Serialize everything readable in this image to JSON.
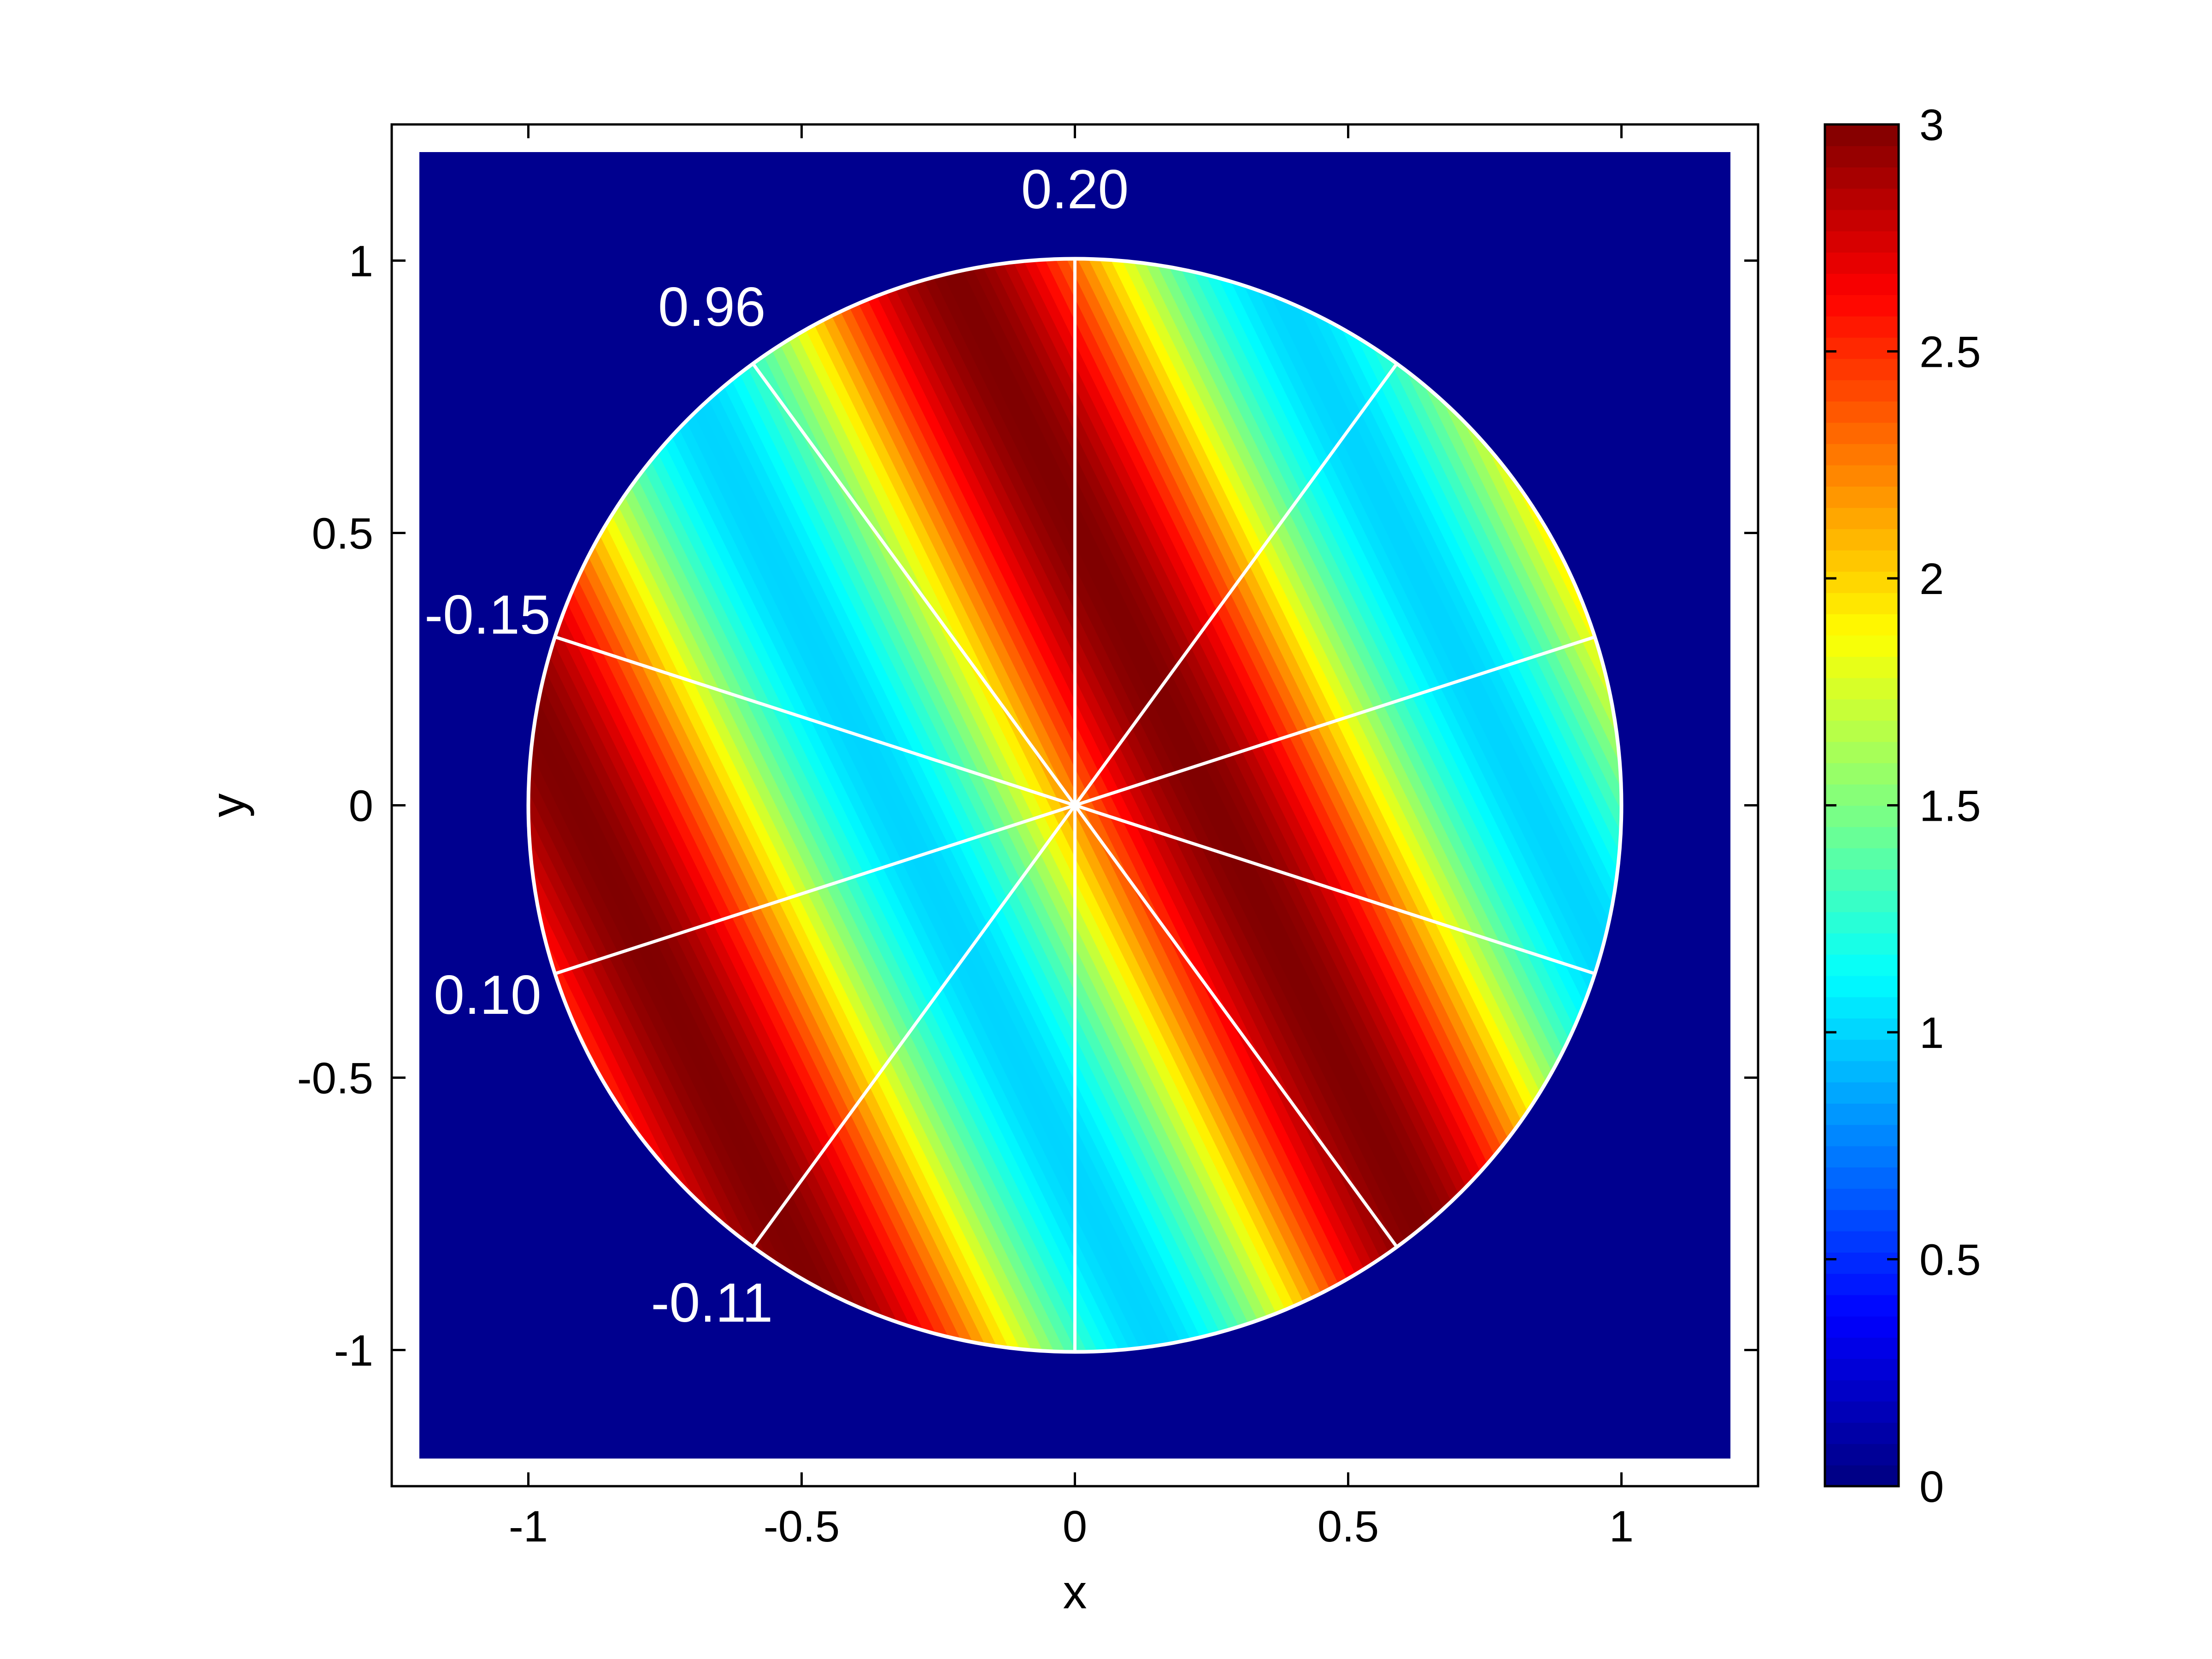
{
  "chart_data": {
    "type": "heatmap",
    "xlabel": "x",
    "ylabel": "y",
    "xlim": [
      -1.25,
      1.25
    ],
    "ylim": [
      -1.25,
      1.25
    ],
    "xticks": [
      -1,
      -0.5,
      0,
      0.5,
      1
    ],
    "yticks": [
      -1,
      -0.5,
      0,
      0.5,
      1
    ],
    "xtick_labels": [
      "-1",
      "-0.5",
      "0",
      "0.5",
      "1"
    ],
    "ytick_labels": [
      "-1",
      "-0.5",
      "0",
      "0.5",
      "1"
    ],
    "colorbar": {
      "colormap": "jet",
      "range": [
        0,
        3
      ],
      "ticks": [
        0,
        0.5,
        1,
        1.5,
        2,
        2.5,
        3
      ],
      "tick_labels": [
        "0",
        "0.5",
        "1",
        "1.5",
        "2",
        "2.5",
        "3"
      ]
    },
    "domain": {
      "shape": "disk",
      "center": [
        0,
        0
      ],
      "radius": 1
    },
    "background_value": 0,
    "field": {
      "description_free": "",
      "wave_direction_deg": 26,
      "wavelength": 1.05,
      "mean": 2.0,
      "amplitude": 1.0,
      "phase": -1.35
    },
    "sector_divider_angles_deg": [
      90,
      126,
      162,
      198,
      234,
      270,
      306,
      342,
      18,
      54
    ],
    "sector_labels": [
      {
        "text": "0.20",
        "angle_deg": 90
      },
      {
        "text": "0.96",
        "angle_deg": 126
      },
      {
        "text": "-0.15",
        "angle_deg": 162
      },
      {
        "text": "0.10",
        "angle_deg": 198
      },
      {
        "text": "-0.11",
        "angle_deg": 234
      }
    ],
    "grid": false,
    "colors": {
      "background": "#00008f",
      "divider": "#ffffff",
      "axis": "#000000"
    }
  }
}
